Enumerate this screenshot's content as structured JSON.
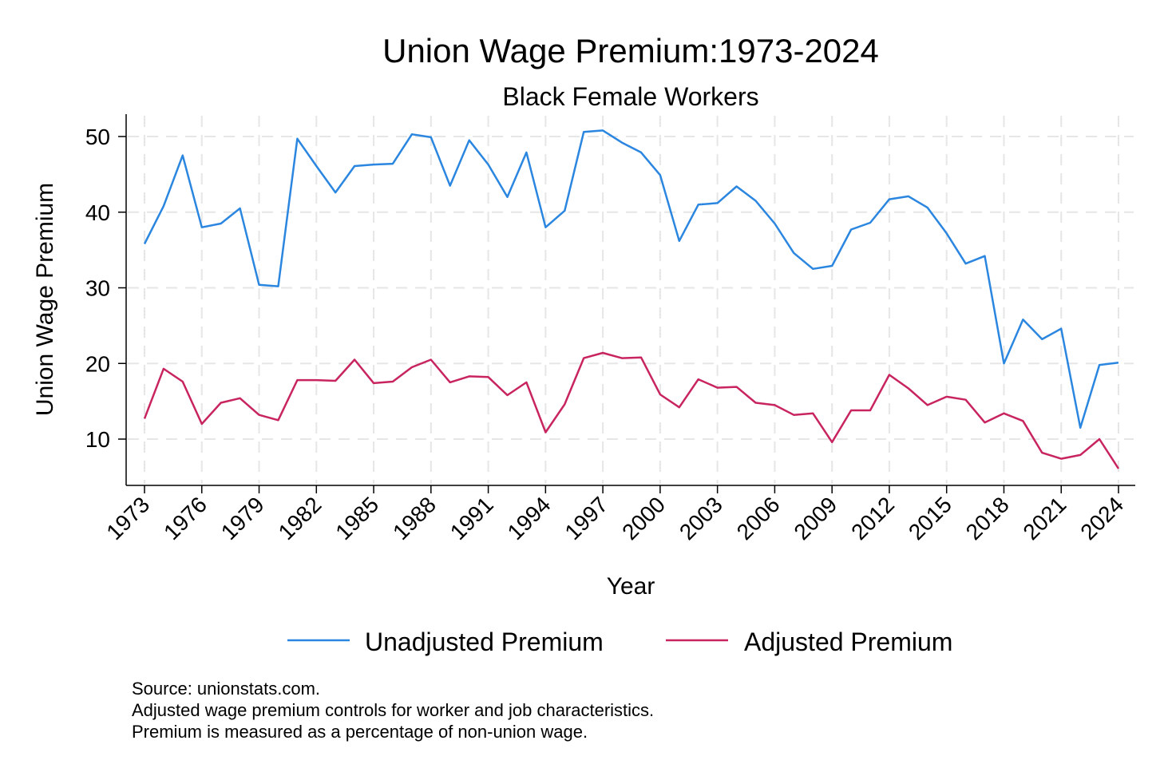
{
  "chart_data": {
    "type": "line",
    "title": "Union Wage Premium:1973-2024",
    "subtitle": "Black Female Workers",
    "xlabel": "Year",
    "ylabel": "Union Wage Premium",
    "xlim": [
      1973,
      2024
    ],
    "ylim": [
      4,
      53
    ],
    "x_ticks": [
      1973,
      1976,
      1979,
      1982,
      1985,
      1988,
      1991,
      1994,
      1997,
      2000,
      2003,
      2006,
      2009,
      2012,
      2015,
      2018,
      2021,
      2024
    ],
    "y_ticks": [
      10,
      20,
      30,
      40,
      50
    ],
    "grid": true,
    "legend_position": "bottom",
    "x": [
      1973,
      1974,
      1975,
      1976,
      1977,
      1978,
      1979,
      1980,
      1981,
      1982,
      1983,
      1984,
      1985,
      1986,
      1987,
      1988,
      1989,
      1990,
      1991,
      1992,
      1993,
      1994,
      1995,
      1996,
      1997,
      1998,
      1999,
      2000,
      2001,
      2002,
      2003,
      2004,
      2005,
      2006,
      2007,
      2008,
      2009,
      2010,
      2011,
      2012,
      2013,
      2014,
      2015,
      2016,
      2017,
      2018,
      2019,
      2020,
      2021,
      2022,
      2023,
      2024
    ],
    "series": [
      {
        "name": "Unadjusted Premium",
        "color": "#2b86e0",
        "values": [
          35.8,
          40.8,
          47.5,
          38.0,
          38.5,
          40.5,
          30.4,
          30.2,
          49.7,
          46.1,
          42.6,
          46.1,
          46.3,
          46.4,
          50.3,
          49.9,
          43.5,
          49.5,
          46.3,
          42.0,
          47.9,
          38.0,
          40.2,
          50.6,
          50.8,
          49.2,
          47.9,
          44.9,
          36.2,
          41.0,
          41.2,
          43.4,
          41.5,
          38.5,
          34.6,
          32.5,
          32.9,
          37.7,
          38.6,
          41.7,
          42.1,
          40.6,
          37.2,
          33.2,
          34.2,
          20.0,
          25.8,
          23.2,
          24.6,
          11.5,
          19.8,
          20.1
        ]
      },
      {
        "name": "Adjusted Premium",
        "color": "#c8245f",
        "values": [
          12.7,
          19.3,
          17.6,
          12.0,
          14.8,
          15.4,
          13.2,
          12.5,
          17.8,
          17.8,
          17.7,
          20.5,
          17.4,
          17.6,
          19.5,
          20.5,
          17.5,
          18.3,
          18.2,
          15.8,
          17.5,
          10.9,
          14.6,
          20.7,
          21.4,
          20.7,
          20.8,
          15.9,
          14.2,
          17.9,
          16.8,
          16.9,
          14.8,
          14.5,
          13.2,
          13.4,
          9.6,
          13.8,
          13.8,
          18.5,
          16.7,
          14.5,
          15.6,
          15.2,
          12.2,
          13.4,
          12.4,
          8.2,
          7.4,
          7.9,
          10.0,
          6.1
        ]
      }
    ]
  },
  "notes": [
    "Source: unionstats.com.",
    "Adjusted wage premium controls for worker and job characteristics.",
    "Premium is measured as a percentage of non-union wage."
  ]
}
